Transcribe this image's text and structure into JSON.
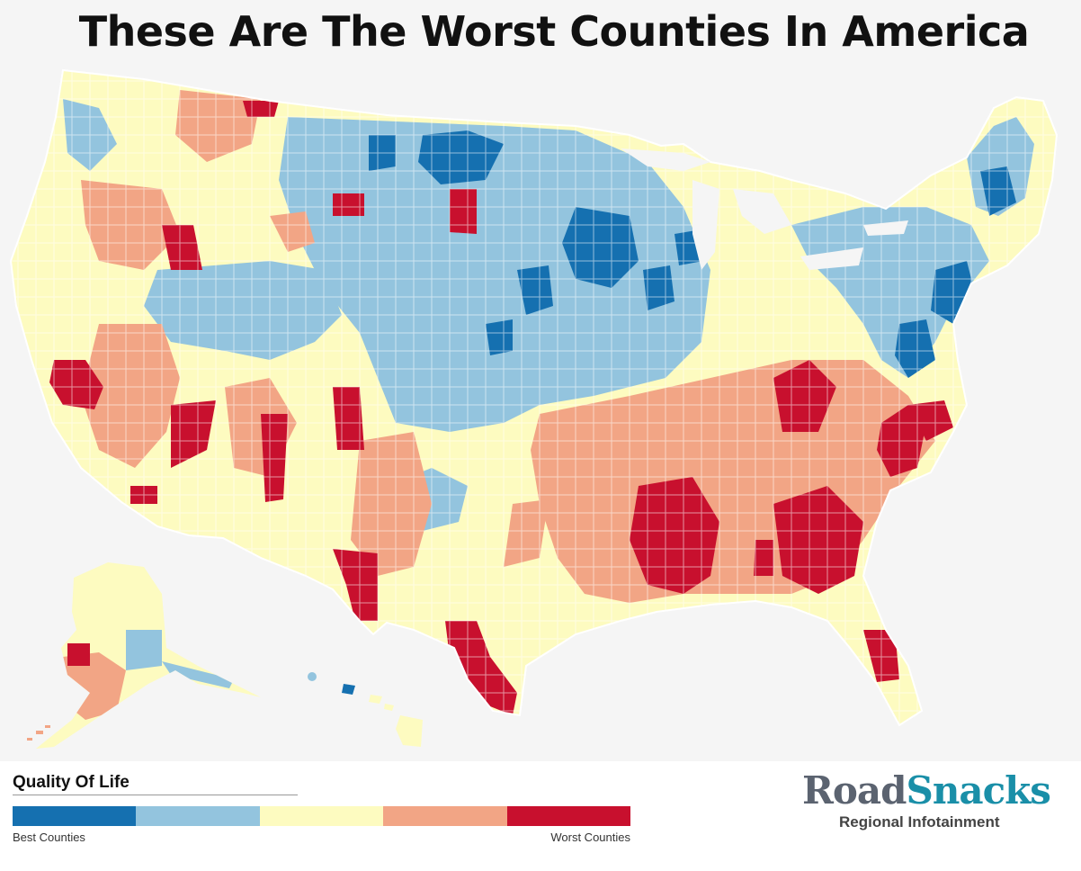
{
  "title": "These Are The Worst Counties In America",
  "legend": {
    "title": "Quality Of Life",
    "best_label": "Best Counties",
    "worst_label": "Worst Counties",
    "colors": [
      "#1570b0",
      "#93c4de",
      "#fdfbc0",
      "#f2a585",
      "#c8102e"
    ]
  },
  "brand": {
    "name_part1": "Road",
    "name_part2": "Snacks",
    "tagline": "Regional Infotainment"
  },
  "map": {
    "background": "#f5f5f5",
    "border_color": "#ffffff"
  }
}
